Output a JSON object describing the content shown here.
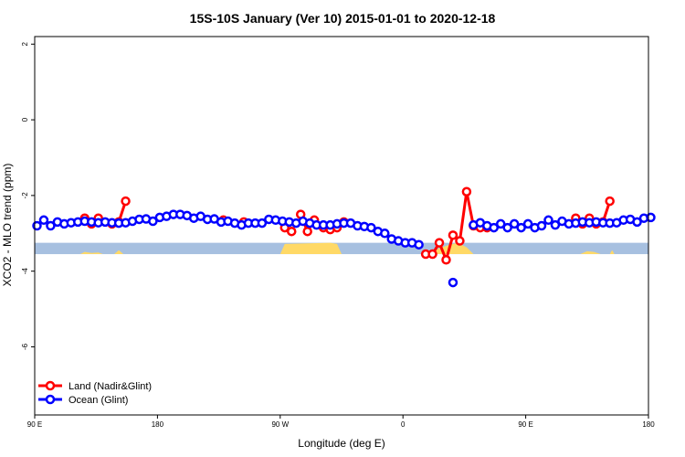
{
  "chart_data": {
    "type": "line",
    "title": "15S-10S January (Ver 10)   2015-01-01 to 2020-12-18",
    "xlabel": "Longitude (deg E)",
    "ylabel": "XCO2 - MLO trend (ppm)",
    "xlim": [
      -90,
      180
    ],
    "ylim": [
      -7.8,
      2.2
    ],
    "x_ticks": [
      {
        "value": -90,
        "label": "90 E"
      },
      {
        "value": -36,
        "label": "180"
      },
      {
        "value": 18,
        "label": "90 W"
      },
      {
        "value": 72,
        "label": "0"
      },
      {
        "value": 126,
        "label": "90 E"
      },
      {
        "value": 180,
        "label": "180"
      }
    ],
    "y_ticks": [
      {
        "value": 2,
        "label": "2"
      },
      {
        "value": 0,
        "label": "0"
      },
      {
        "value": -2,
        "label": "-2"
      },
      {
        "value": -4,
        "label": "-4"
      },
      {
        "value": -6,
        "label": "-6"
      }
    ],
    "grid": false,
    "legend_position": "bottom-left",
    "series": [
      {
        "name": "Land (Nadir&Glint)",
        "color": "#ff0000",
        "points": [
          [
            -68,
            -2.6
          ],
          [
            -65,
            -2.75
          ],
          [
            -62,
            -2.6
          ],
          [
            -56,
            -2.75
          ],
          [
            -53,
            -2.7
          ],
          [
            -50,
            -2.15
          ],
          [
            -7,
            -2.65
          ],
          [
            2,
            -2.7
          ],
          [
            20,
            -2.85
          ],
          [
            23,
            -2.95
          ],
          [
            27,
            -2.5
          ],
          [
            30,
            -2.95
          ],
          [
            33,
            -2.65
          ],
          [
            37,
            -2.85
          ],
          [
            40,
            -2.9
          ],
          [
            43,
            -2.85
          ],
          [
            46,
            -2.7
          ],
          [
            82,
            -3.55
          ],
          [
            85,
            -3.55
          ],
          [
            88,
            -3.25
          ],
          [
            91,
            -3.7
          ],
          [
            94,
            -3.05
          ],
          [
            97,
            -3.2
          ],
          [
            100,
            -1.9
          ],
          [
            103,
            -2.8
          ],
          [
            106,
            -2.85
          ],
          [
            109,
            -2.85
          ],
          [
            148,
            -2.6
          ],
          [
            151,
            -2.75
          ],
          [
            154,
            -2.6
          ],
          [
            157,
            -2.75
          ],
          [
            160,
            -2.7
          ],
          [
            163,
            -2.15
          ]
        ]
      },
      {
        "name": "Ocean (Glint)",
        "color": "#0000ff",
        "points": [
          [
            -89,
            -2.8
          ],
          [
            -86,
            -2.65
          ],
          [
            -83,
            -2.8
          ],
          [
            -80,
            -2.7
          ],
          [
            -77,
            -2.75
          ],
          [
            -74,
            -2.72
          ],
          [
            -71,
            -2.7
          ],
          [
            -68,
            -2.68
          ],
          [
            -65,
            -2.7
          ],
          [
            -62,
            -2.72
          ],
          [
            -59,
            -2.7
          ],
          [
            -56,
            -2.72
          ],
          [
            -53,
            -2.73
          ],
          [
            -50,
            -2.72
          ],
          [
            -47,
            -2.68
          ],
          [
            -44,
            -2.63
          ],
          [
            -41,
            -2.62
          ],
          [
            -38,
            -2.68
          ],
          [
            -35,
            -2.58
          ],
          [
            -32,
            -2.55
          ],
          [
            -29,
            -2.5
          ],
          [
            -26,
            -2.5
          ],
          [
            -23,
            -2.53
          ],
          [
            -20,
            -2.6
          ],
          [
            -17,
            -2.55
          ],
          [
            -14,
            -2.63
          ],
          [
            -11,
            -2.62
          ],
          [
            -8,
            -2.7
          ],
          [
            -5,
            -2.68
          ],
          [
            -2,
            -2.73
          ],
          [
            1,
            -2.78
          ],
          [
            4,
            -2.73
          ],
          [
            7,
            -2.73
          ],
          [
            10,
            -2.73
          ],
          [
            13,
            -2.63
          ],
          [
            16,
            -2.65
          ],
          [
            19,
            -2.68
          ],
          [
            22,
            -2.7
          ],
          [
            25,
            -2.73
          ],
          [
            28,
            -2.68
          ],
          [
            31,
            -2.73
          ],
          [
            34,
            -2.78
          ],
          [
            37,
            -2.78
          ],
          [
            40,
            -2.78
          ],
          [
            43,
            -2.75
          ],
          [
            46,
            -2.73
          ],
          [
            49,
            -2.73
          ],
          [
            52,
            -2.8
          ],
          [
            55,
            -2.82
          ],
          [
            58,
            -2.85
          ],
          [
            61,
            -2.95
          ],
          [
            64,
            -3.0
          ],
          [
            67,
            -3.15
          ],
          [
            70,
            -3.2
          ],
          [
            73,
            -3.25
          ],
          [
            76,
            -3.25
          ],
          [
            79,
            -3.3
          ],
          [
            94,
            -4.3
          ],
          [
            103,
            -2.78
          ],
          [
            106,
            -2.72
          ],
          [
            109,
            -2.8
          ],
          [
            112,
            -2.85
          ],
          [
            115,
            -2.75
          ],
          [
            118,
            -2.85
          ],
          [
            121,
            -2.75
          ],
          [
            124,
            -2.85
          ],
          [
            127,
            -2.75
          ],
          [
            130,
            -2.85
          ],
          [
            133,
            -2.8
          ],
          [
            136,
            -2.65
          ],
          [
            139,
            -2.78
          ],
          [
            142,
            -2.68
          ],
          [
            145,
            -2.75
          ],
          [
            148,
            -2.73
          ],
          [
            151,
            -2.7
          ],
          [
            154,
            -2.72
          ],
          [
            157,
            -2.7
          ],
          [
            160,
            -2.72
          ],
          [
            163,
            -2.73
          ],
          [
            166,
            -2.72
          ],
          [
            169,
            -2.65
          ],
          [
            172,
            -2.63
          ],
          [
            175,
            -2.7
          ],
          [
            178,
            -2.6
          ],
          [
            181,
            -2.58
          ]
        ]
      }
    ],
    "background_band": {
      "y_from": -3.55,
      "y_to": -3.25,
      "ocean_color": "#a7c0e0",
      "land_color": "#ffd966",
      "land_segments": [
        {
          "profile": [
            [
              -70,
              0
            ],
            [
              -68,
              0.2
            ],
            [
              -65,
              0.1
            ],
            [
              -62,
              0.15
            ],
            [
              -60,
              0
            ]
          ]
        },
        {
          "profile": [
            [
              -55,
              0
            ],
            [
              -53,
              0.35
            ],
            [
              -51,
              0
            ]
          ]
        },
        {
          "profile": [
            [
              18,
              0
            ],
            [
              20,
              0.9
            ],
            [
              40,
              1
            ],
            [
              43,
              0.9
            ],
            [
              45,
              0
            ]
          ]
        },
        {
          "profile": [
            [
              82,
              0
            ],
            [
              84,
              0.2
            ],
            [
              88,
              0.5
            ],
            [
              92,
              0.8
            ],
            [
              96,
              1
            ],
            [
              100,
              0.6
            ],
            [
              103,
              0
            ]
          ]
        },
        {
          "profile": [
            [
              150,
              0
            ],
            [
              153,
              0.25
            ],
            [
              156,
              0.2
            ],
            [
              159,
              0
            ]
          ]
        },
        {
          "profile": [
            [
              163,
              0
            ],
            [
              164,
              0.35
            ],
            [
              165,
              0
            ]
          ]
        }
      ]
    }
  },
  "legend": {
    "items": [
      {
        "label": "Land (Nadir&Glint)",
        "color": "#ff0000"
      },
      {
        "label": "Ocean (Glint)",
        "color": "#0000ff"
      }
    ]
  }
}
